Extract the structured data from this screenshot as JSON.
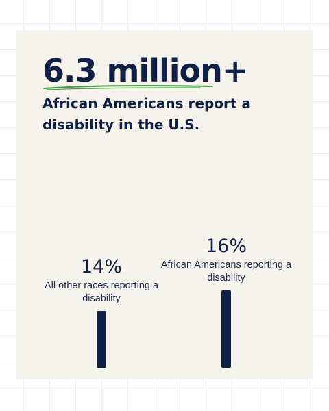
{
  "headline": "6.3 million+",
  "subhead": "African Americans report a disability in the U.S.",
  "colors": {
    "background": "#ffffff",
    "card": "#f6f3ed",
    "navy": "#0f1f45",
    "underline_green": "#3f9b3a"
  },
  "chart_data": {
    "type": "bar",
    "categories": [
      "All other races reporting a disability",
      "African Americans reporting a disability"
    ],
    "values": [
      14,
      16
    ],
    "value_labels": [
      "14%",
      "16%"
    ],
    "unit": "%",
    "grid": false,
    "legend": "none"
  }
}
